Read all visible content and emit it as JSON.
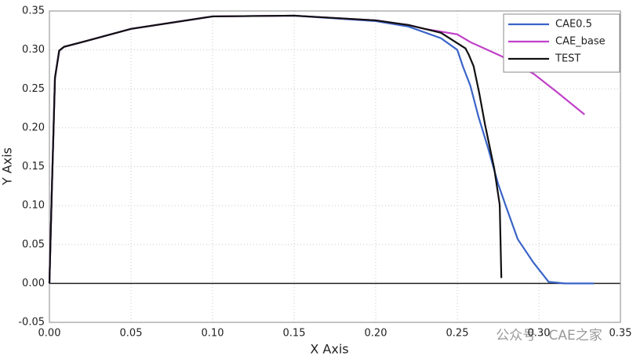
{
  "chart_data": {
    "type": "line",
    "xlabel": "X Axis",
    "ylabel": "Y Axis",
    "watermark": "公众号 · CAE之家",
    "xlim": [
      0,
      0.35
    ],
    "ylim": [
      -0.05,
      0.35
    ],
    "xticks": [
      {
        "value": 0,
        "label": "0.00"
      },
      0.05,
      {
        "value": 0.1,
        "label": "0.10"
      },
      0.15,
      {
        "value": 0.2,
        "label": "0.20"
      },
      0.25,
      {
        "value": 0.3,
        "label": "0.30"
      },
      0.35
    ],
    "yticks": [
      {
        "value": -0.05,
        "label": "-0.05"
      },
      {
        "value": 0,
        "label": "0.00"
      },
      0.05,
      {
        "value": 0.1,
        "label": "0.10"
      },
      0.15,
      {
        "value": 0.2,
        "label": "0.20"
      },
      0.25,
      {
        "value": 0.3,
        "label": "0.30"
      },
      0.35
    ],
    "grid": true,
    "legend": "upper right",
    "series": [
      {
        "name": "CAE0.5",
        "color": "#3a64c8",
        "x": [
          0,
          0.0014,
          0.0034,
          0.006,
          0.009,
          0.02,
          0.05,
          0.1,
          0.15,
          0.2,
          0.22,
          0.24,
          0.25,
          0.2534,
          0.258,
          0.263,
          0.269,
          0.275,
          0.28,
          0.287,
          0.2966,
          0.306,
          0.316,
          0.3337
        ],
        "values": [
          0,
          0.113,
          0.264,
          0.299,
          0.304,
          0.31,
          0.327,
          0.343,
          0.344,
          0.337,
          0.33,
          0.315,
          0.3,
          0.279,
          0.254,
          0.214,
          0.173,
          0.128,
          0.098,
          0.057,
          0.027,
          0.002,
          0,
          0
        ]
      },
      {
        "name": "CAE_base",
        "color": "#c040c8",
        "x": [
          0,
          0.0014,
          0.0034,
          0.006,
          0.009,
          0.02,
          0.05,
          0.1,
          0.15,
          0.2,
          0.22,
          0.23,
          0.25,
          0.258,
          0.277,
          0.297,
          0.311,
          0.328
        ],
        "values": [
          0,
          0.113,
          0.264,
          0.299,
          0.304,
          0.31,
          0.327,
          0.343,
          0.344,
          0.338,
          0.332,
          0.327,
          0.32,
          0.31,
          0.292,
          0.269,
          0.246,
          0.217
        ]
      },
      {
        "name": "TEST",
        "color": "#111111",
        "x": [
          0,
          0.0014,
          0.0034,
          0.006,
          0.009,
          0.02,
          0.05,
          0.1,
          0.15,
          0.2,
          0.22,
          0.24,
          0.255,
          0.257,
          0.26,
          0.2635,
          0.267,
          0.2726,
          0.276,
          0.277
        ],
        "values": [
          0,
          0.113,
          0.264,
          0.299,
          0.304,
          0.31,
          0.327,
          0.343,
          0.344,
          0.338,
          0.332,
          0.322,
          0.302,
          0.294,
          0.279,
          0.244,
          0.204,
          0.148,
          0.101,
          0.007
        ]
      }
    ]
  }
}
